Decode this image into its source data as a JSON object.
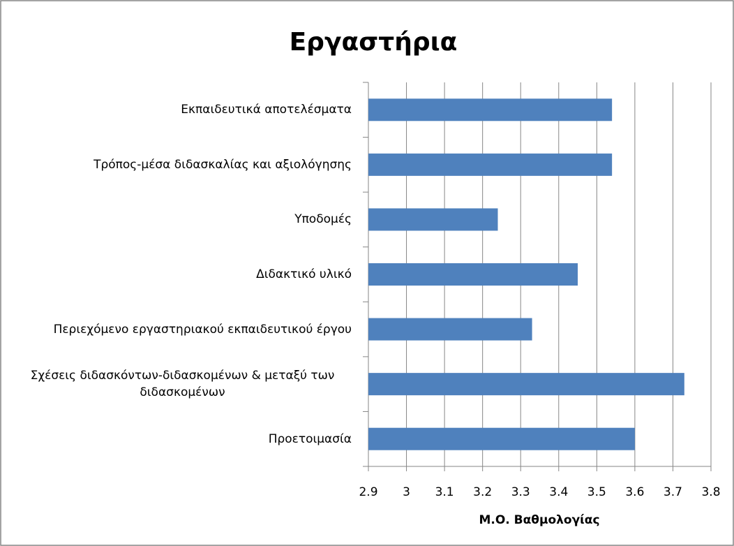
{
  "chart_data": {
    "type": "barh",
    "title": "Εργαστήρια",
    "categories": [
      "Εκπαιδευτικά αποτελέσματα",
      "Τρόπος-μέσα διδασκαλίας και αξιολόγησης",
      "Υποδομές",
      "Διδακτικό υλικό",
      "Περιεχόμενο εργαστηριακού εκπαιδευτικού έργου",
      "Σχέσεις διδασκόντων-διδασκομένων & μεταξύ των διδασκομένων",
      "Προετοιμασία"
    ],
    "values": [
      3.54,
      3.54,
      3.24,
      3.45,
      3.33,
      3.73,
      3.6
    ],
    "color": "#4f81bd",
    "x_label": "Μ.Ο. Βαθμολογίας",
    "xlim": [
      2.9,
      3.8
    ],
    "xticks": [
      2.9,
      3,
      3.1,
      3.2,
      3.3,
      3.4,
      3.5,
      3.6,
      3.7,
      3.8
    ],
    "grid": true
  }
}
